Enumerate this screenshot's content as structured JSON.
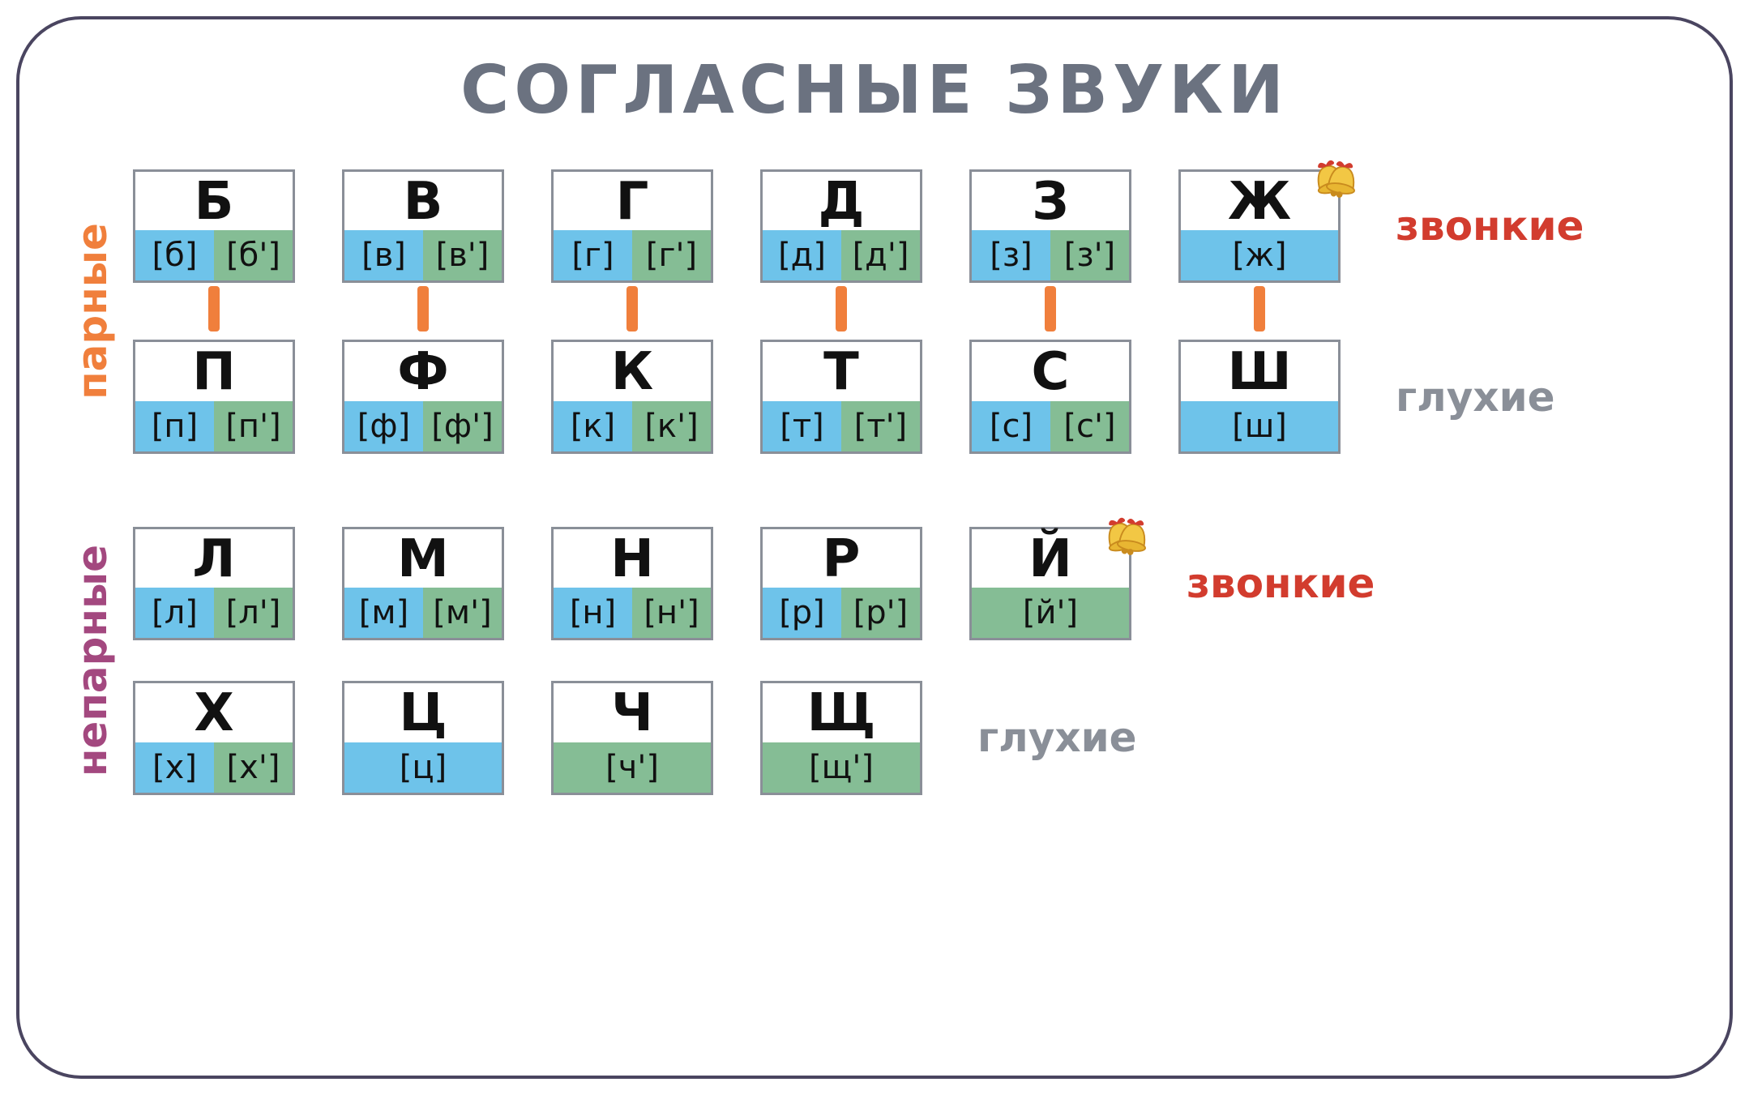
{
  "title": "СОГЛАСНЫЕ  ЗВУКИ",
  "colors": {
    "title_text": "#6b7280",
    "frame_border": "#4a4560",
    "card_border": "#8a8f98",
    "hard_bg": "#6ec3ea",
    "soft_bg": "#85bd95",
    "connector": "#f07f3c",
    "label_paired": "#f07f3c",
    "label_unpaired": "#a3487f",
    "label_voiced": "#d23c2e",
    "label_voiceless": "#8a8f98"
  },
  "section_labels": {
    "paired": "парные",
    "unpaired": "непарные"
  },
  "row_labels": {
    "voiced": "звонкие",
    "voiceless": "глухие"
  },
  "paired": {
    "voiced": [
      {
        "letter": "Б",
        "hard": "[б]",
        "soft": "[б']"
      },
      {
        "letter": "В",
        "hard": "[в]",
        "soft": "[в']"
      },
      {
        "letter": "Г",
        "hard": "[г]",
        "soft": "[г']"
      },
      {
        "letter": "Д",
        "hard": "[д]",
        "soft": "[д']"
      },
      {
        "letter": "З",
        "hard": "[з]",
        "soft": "[з']"
      },
      {
        "letter": "Ж",
        "single": "[ж]",
        "single_type": "hard",
        "bell": true
      }
    ],
    "voiceless": [
      {
        "letter": "П",
        "hard": "[п]",
        "soft": "[п']"
      },
      {
        "letter": "Ф",
        "hard": "[ф]",
        "soft": "[ф']"
      },
      {
        "letter": "К",
        "hard": "[к]",
        "soft": "[к']"
      },
      {
        "letter": "Т",
        "hard": "[т]",
        "soft": "[т']"
      },
      {
        "letter": "С",
        "hard": "[с]",
        "soft": "[с']"
      },
      {
        "letter": "Ш",
        "single": "[ш]",
        "single_type": "hard"
      }
    ]
  },
  "unpaired": {
    "voiced": [
      {
        "letter": "Л",
        "hard": "[л]",
        "soft": "[л']"
      },
      {
        "letter": "М",
        "hard": "[м]",
        "soft": "[м']"
      },
      {
        "letter": "Н",
        "hard": "[н]",
        "soft": "[н']"
      },
      {
        "letter": "Р",
        "hard": "[р]",
        "soft": "[р']"
      },
      {
        "letter": "Й",
        "single": "[й']",
        "single_type": "soft",
        "bell": true
      }
    ],
    "voiceless": [
      {
        "letter": "Х",
        "hard": "[х]",
        "soft": "[х']"
      },
      {
        "letter": "Ц",
        "single": "[ц]",
        "single_type": "hard"
      },
      {
        "letter": "Ч",
        "single": "[ч']",
        "single_type": "soft"
      },
      {
        "letter": "Щ",
        "single": "[щ']",
        "single_type": "soft"
      }
    ]
  }
}
